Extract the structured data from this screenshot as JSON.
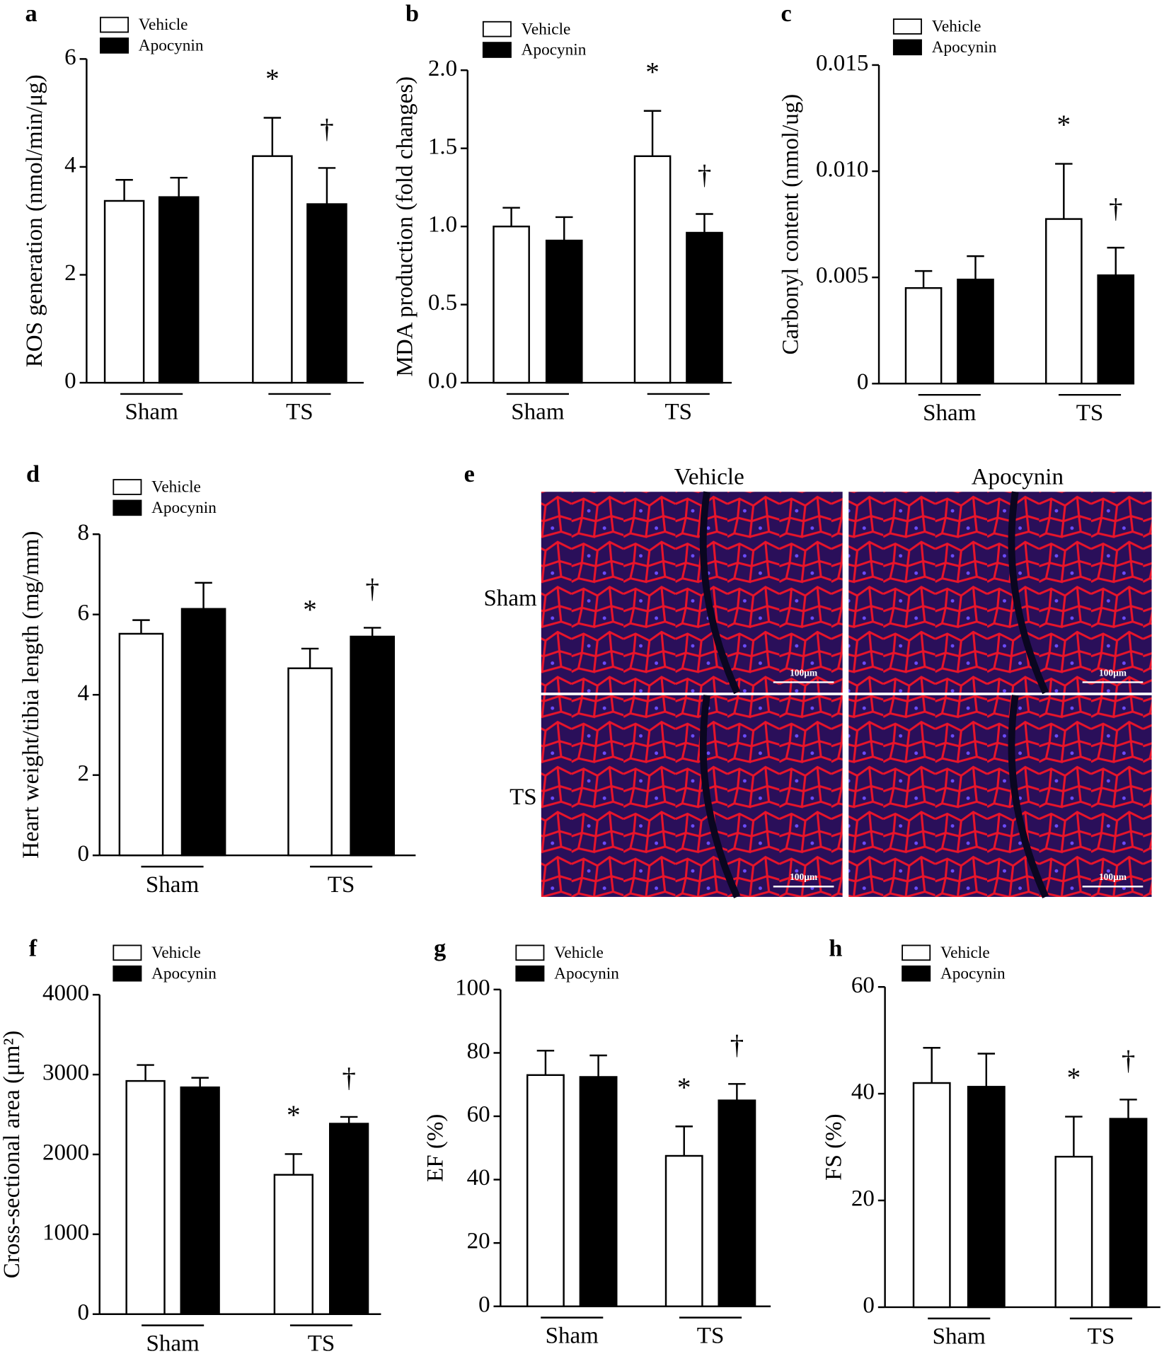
{
  "chart_data": [
    {
      "type": "bar",
      "panel": "a",
      "ylabel": "ROS generation (nmol/min/μg)",
      "categories": [
        "Sham",
        "TS"
      ],
      "ylim": [
        0,
        6
      ],
      "yticks": [
        0,
        2,
        4,
        6
      ],
      "series": [
        {
          "name": "Vehicle",
          "color": "#ffffff",
          "values": [
            3.37,
            4.2
          ],
          "errors": [
            0.39,
            0.71
          ],
          "markers": [
            null,
            "*"
          ]
        },
        {
          "name": "Apocynin",
          "color": "#000000",
          "values": [
            3.44,
            3.31
          ],
          "errors": [
            0.36,
            0.67
          ],
          "markers": [
            null,
            "†"
          ]
        }
      ]
    },
    {
      "type": "bar",
      "panel": "b",
      "ylabel": "MDA production (fold changes)",
      "categories": [
        "Sham",
        "TS"
      ],
      "ylim": [
        0,
        2
      ],
      "yticks": [
        {
          "value": 0,
          "label": "0.0"
        },
        0.5,
        {
          "value": 1,
          "label": "1.0"
        },
        1.5,
        {
          "value": 2,
          "label": "2.0"
        }
      ],
      "series": [
        {
          "name": "Vehicle",
          "color": "#ffffff",
          "values": [
            1.0,
            1.45
          ],
          "errors": [
            0.12,
            0.29
          ],
          "markers": [
            null,
            "*"
          ]
        },
        {
          "name": "Apocynin",
          "color": "#000000",
          "values": [
            0.91,
            0.96
          ],
          "errors": [
            0.15,
            0.12
          ],
          "markers": [
            null,
            "†"
          ]
        }
      ]
    },
    {
      "type": "bar",
      "panel": "c",
      "ylabel": "Carbonyl content (nmol/ug)",
      "categories": [
        "Sham",
        "TS"
      ],
      "ylim": [
        0,
        0.015
      ],
      "yticks": [
        0,
        0.005,
        {
          "value": 0.01,
          "label": "0.010"
        },
        0.015
      ],
      "series": [
        {
          "name": "Vehicle",
          "color": "#ffffff",
          "values": [
            0.0045,
            0.00775
          ],
          "errors": [
            0.0008,
            0.0026
          ],
          "markers": [
            null,
            "*"
          ]
        },
        {
          "name": "Apocynin",
          "color": "#000000",
          "values": [
            0.0049,
            0.0051
          ],
          "errors": [
            0.0011,
            0.0013
          ],
          "markers": [
            null,
            "†"
          ]
        }
      ]
    },
    {
      "type": "bar",
      "panel": "d",
      "ylabel": "Heart weight/tibia length (mg/mm)",
      "categories": [
        "Sham",
        "TS"
      ],
      "ylim": [
        0,
        8
      ],
      "yticks": [
        0,
        2,
        4,
        6,
        8
      ],
      "series": [
        {
          "name": "Vehicle",
          "color": "#ffffff",
          "values": [
            5.52,
            4.66
          ],
          "errors": [
            0.34,
            0.49
          ],
          "markers": [
            null,
            "*"
          ]
        },
        {
          "name": "Apocynin",
          "color": "#000000",
          "values": [
            6.14,
            5.45
          ],
          "errors": [
            0.65,
            0.22
          ],
          "markers": [
            null,
            "†"
          ]
        }
      ]
    },
    {
      "type": "image",
      "panel": "e",
      "columns": [
        "Vehicle",
        "Apocynin"
      ],
      "rows": [
        "Sham",
        "TS"
      ],
      "scale_bar": "100μm"
    },
    {
      "type": "bar",
      "panel": "f",
      "ylabel": "Cross-sectional area (μm²)",
      "categories": [
        "Sham",
        "TS"
      ],
      "ylim": [
        0,
        4000
      ],
      "yticks": [
        0,
        1000,
        2000,
        3000,
        4000
      ],
      "series": [
        {
          "name": "Vehicle",
          "color": "#ffffff",
          "values": [
            2920,
            1745
          ],
          "errors": [
            200,
            260
          ],
          "markers": [
            null,
            "*"
          ]
        },
        {
          "name": "Apocynin",
          "color": "#000000",
          "values": [
            2840,
            2385
          ],
          "errors": [
            120,
            85
          ],
          "markers": [
            null,
            "†"
          ]
        }
      ]
    },
    {
      "type": "bar",
      "panel": "g",
      "ylabel": "EF (%)",
      "categories": [
        "Sham",
        "TS"
      ],
      "ylim": [
        0,
        100
      ],
      "yticks": [
        0,
        20,
        40,
        60,
        80,
        100
      ],
      "series": [
        {
          "name": "Vehicle",
          "color": "#ffffff",
          "values": [
            73,
            47.5
          ],
          "errors": [
            7.7,
            9.3
          ],
          "markers": [
            null,
            "*"
          ]
        },
        {
          "name": "Apocynin",
          "color": "#000000",
          "values": [
            72.4,
            65
          ],
          "errors": [
            6.8,
            5.2
          ],
          "markers": [
            null,
            "†"
          ]
        }
      ]
    },
    {
      "type": "bar",
      "panel": "h",
      "ylabel": "FS (%)",
      "categories": [
        "Sham",
        "TS"
      ],
      "ylim": [
        0,
        60
      ],
      "yticks": [
        0,
        20,
        40,
        60
      ],
      "series": [
        {
          "name": "Vehicle",
          "color": "#ffffff",
          "values": [
            42,
            28.2
          ],
          "errors": [
            6.6,
            7.5
          ],
          "markers": [
            null,
            "*"
          ]
        },
        {
          "name": "Apocynin",
          "color": "#000000",
          "values": [
            41.3,
            35.3
          ],
          "errors": [
            6.2,
            3.6
          ],
          "markers": [
            null,
            "†"
          ]
        }
      ]
    }
  ]
}
